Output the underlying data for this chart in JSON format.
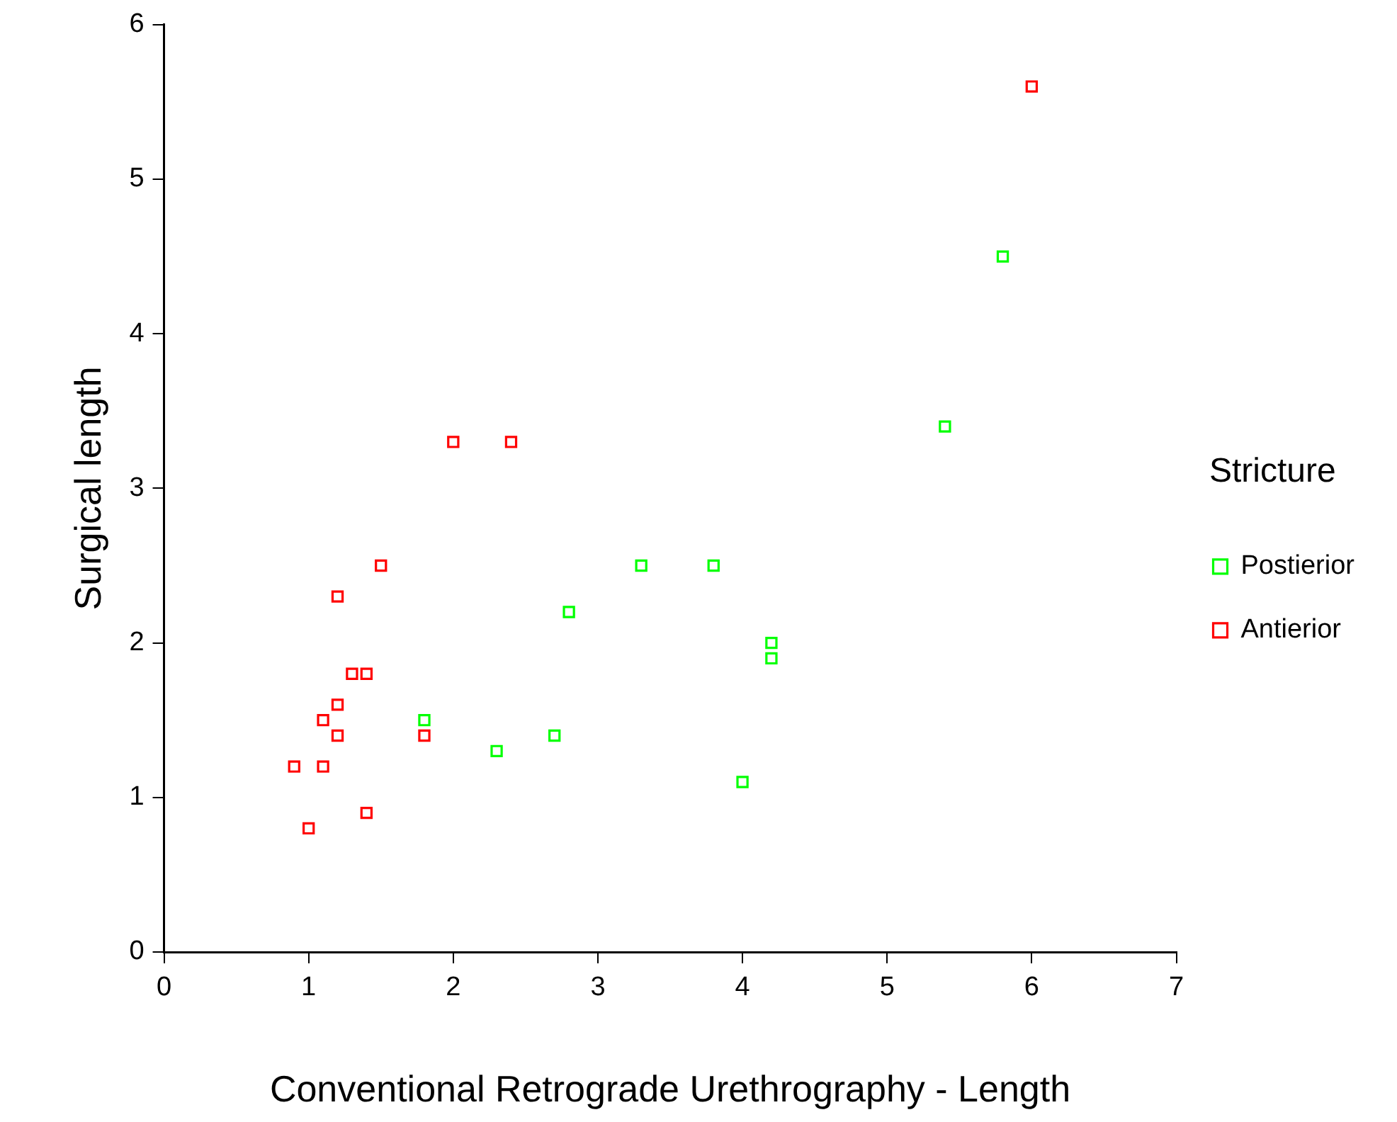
{
  "chart_data": {
    "type": "scatter",
    "xlabel": "Conventional Retrograde Urethrography - Length",
    "ylabel": "Surgical length",
    "legend_title": "Stricture",
    "legend": "right",
    "grid": false,
    "marker": "square",
    "xlim": [
      0,
      7
    ],
    "xticks": [
      0,
      1,
      2,
      3,
      4,
      5,
      6,
      7
    ],
    "ylim": [
      0,
      6
    ],
    "yticks": [
      0,
      1,
      2,
      3,
      4,
      5,
      6
    ],
    "series": [
      {
        "name": "Postierior",
        "color": "#00ff00",
        "x": [
          1.8,
          2.3,
          2.7,
          2.8,
          3.3,
          3.8,
          4.2,
          4.2,
          4.0,
          5.4,
          5.8
        ],
        "values": [
          1.5,
          1.3,
          1.4,
          2.2,
          2.5,
          2.5,
          2.0,
          1.9,
          1.1,
          3.4,
          4.5
        ]
      },
      {
        "name": "Antierior",
        "color": "#ff0000",
        "x": [
          6.0,
          2.0,
          2.4,
          1.5,
          1.2,
          1.3,
          1.4,
          1.2,
          1.1,
          1.2,
          1.8,
          0.9,
          1.1,
          1.4,
          1.0
        ],
        "values": [
          5.6,
          3.3,
          3.3,
          2.5,
          2.3,
          1.8,
          1.8,
          1.6,
          1.5,
          1.4,
          1.4,
          1.2,
          1.2,
          0.9,
          0.8
        ]
      }
    ]
  }
}
